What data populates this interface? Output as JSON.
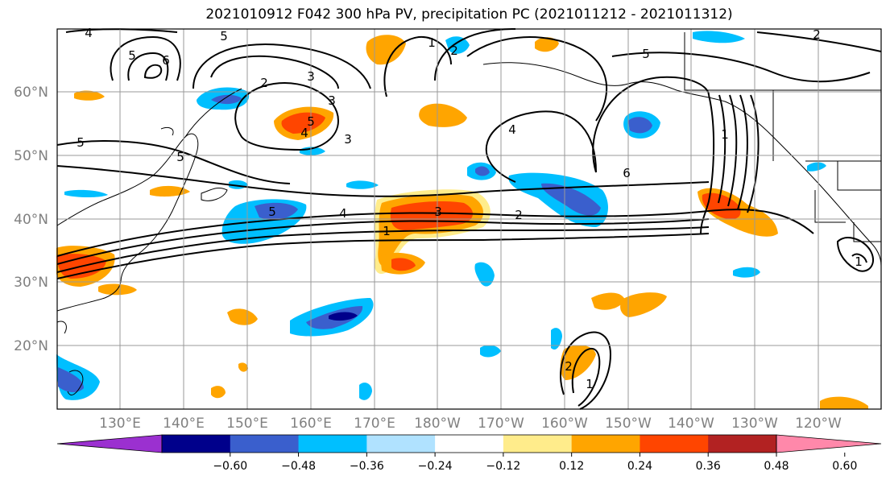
{
  "title": "2021010912 F042 300 hPa PV, precipitation PC (2021011212 - 2021011312)",
  "lat_labels": [
    "60°N",
    "50°N",
    "40°N",
    "30°N",
    "20°N"
  ],
  "lon_labels": [
    "130°E",
    "140°E",
    "150°E",
    "160°E",
    "170°E",
    "180°W",
    "170°W",
    "160°W",
    "150°W",
    "140°W",
    "130°W",
    "120°W"
  ],
  "colorbar": {
    "colors": [
      "#9b30d0",
      "#00008b",
      "#3a5fcd",
      "#00bfff",
      "#b0e2ff",
      "#ffffff",
      "#ffec8b",
      "#ffa500",
      "#ff4500",
      "#b22222",
      "#ff88aa"
    ],
    "tick_labels": [
      "-0.60",
      "-0.48",
      "-0.36",
      "-0.24",
      "-0.12",
      "0.12",
      "0.24",
      "0.36",
      "0.48",
      "0.60"
    ]
  },
  "contour_labels": [
    "4",
    "5",
    "6",
    "5",
    "1",
    "2",
    "3",
    "2",
    "3",
    "5",
    "4",
    "5",
    "3",
    "5",
    "1",
    "2",
    "5",
    "4",
    "6",
    "5",
    "4",
    "3",
    "2",
    "1",
    "2",
    "1",
    "1"
  ],
  "colors": {
    "text": "#000000",
    "tick": "#808080",
    "grid": "#999999",
    "land": "#ffffff"
  }
}
